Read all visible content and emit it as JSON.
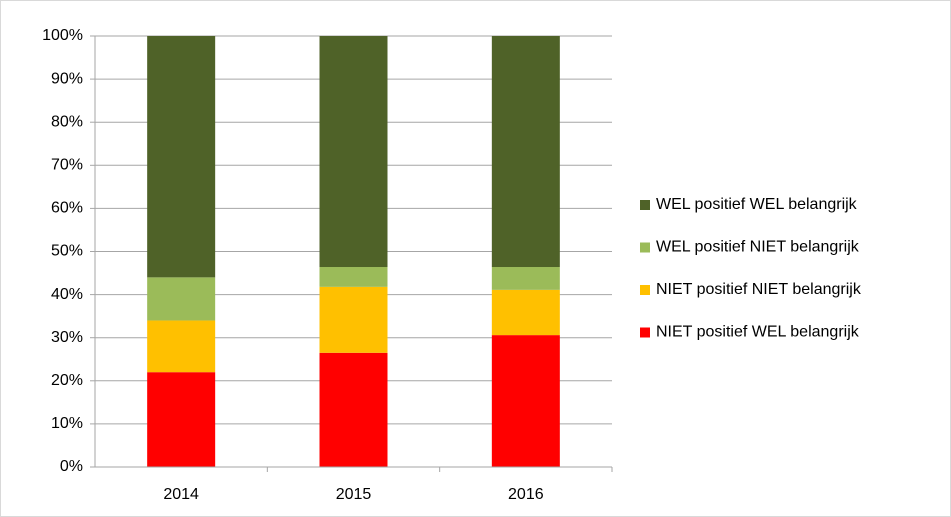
{
  "chart_data": {
    "type": "stacked_bar",
    "categories": [
      "2014",
      "2015",
      "2016"
    ],
    "series": [
      {
        "name": "NIET positief WEL belangrijk",
        "color": "#ff0000",
        "values": [
          22,
          26.5,
          30.6
        ]
      },
      {
        "name": "NIET positief NIET belangrijk",
        "color": "#ffc000",
        "values": [
          12,
          15.3,
          10.5
        ]
      },
      {
        "name": "WEL positief NIET belangrijk",
        "color": "#9bbb59",
        "values": [
          10,
          4.6,
          5.3
        ]
      },
      {
        "name": "WEL positief WEL belangrijk",
        "color": "#4f6228",
        "values": [
          56,
          53.6,
          53.6
        ]
      }
    ],
    "ylim": [
      0,
      100
    ],
    "yticks": [
      {
        "value": 0,
        "label": "0%"
      },
      {
        "value": 10,
        "label": "10%"
      },
      {
        "value": 20,
        "label": "20%"
      },
      {
        "value": 30,
        "label": "30%"
      },
      {
        "value": 40,
        "label": "40%"
      },
      {
        "value": 50,
        "label": "50%"
      },
      {
        "value": 60,
        "label": "60%"
      },
      {
        "value": 70,
        "label": "70%"
      },
      {
        "value": 80,
        "label": "80%"
      },
      {
        "value": 90,
        "label": "90%"
      },
      {
        "value": 100,
        "label": "100%"
      }
    ],
    "grid": true,
    "legend": "right"
  }
}
